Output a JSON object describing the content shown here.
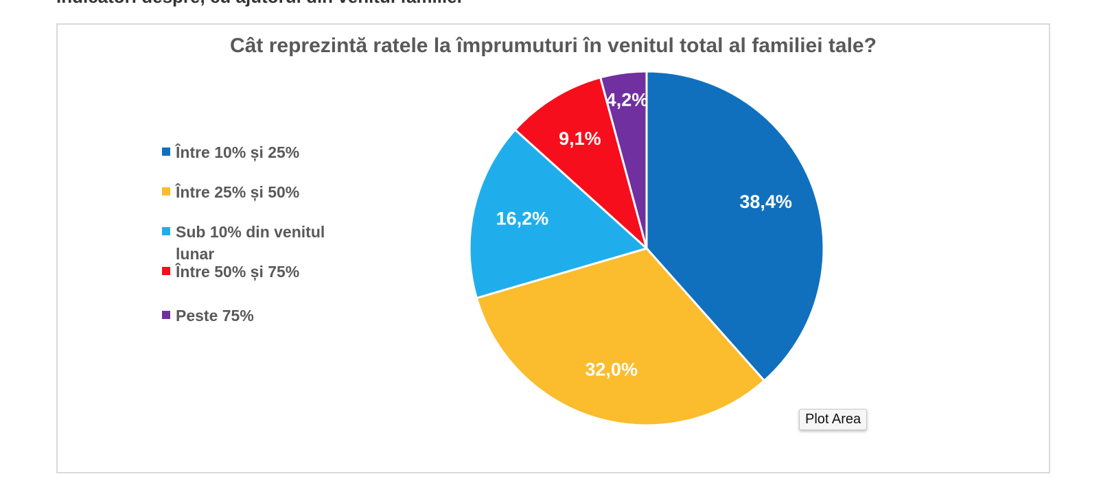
{
  "top_text": "Indicatori despre, cu ajutorul din venitul familiei",
  "tooltip": "Plot Area",
  "chart_data": {
    "type": "pie",
    "title": "Cât reprezintă ratele la împrumuturi în venitul total al familiei tale?",
    "legend_position": "left",
    "series": [
      {
        "label": "Între 10% și 25%",
        "value": 38.4,
        "data_label": "38,4%",
        "color": "#1170BE"
      },
      {
        "label": "Între 25% și 50%",
        "value": 32.0,
        "data_label": "32,0%",
        "color": "#FBBC2D"
      },
      {
        "label": "Sub 10% din venitul lunar",
        "value": 16.2,
        "data_label": "16,2%",
        "color": "#1FAEEB"
      },
      {
        "label": "Între 50% și 75%",
        "value": 9.1,
        "data_label": "9,1%",
        "color": "#F70E1C"
      },
      {
        "label": "Peste 75%",
        "value": 4.2,
        "data_label": "4,2%",
        "color": "#7030A0"
      }
    ]
  }
}
